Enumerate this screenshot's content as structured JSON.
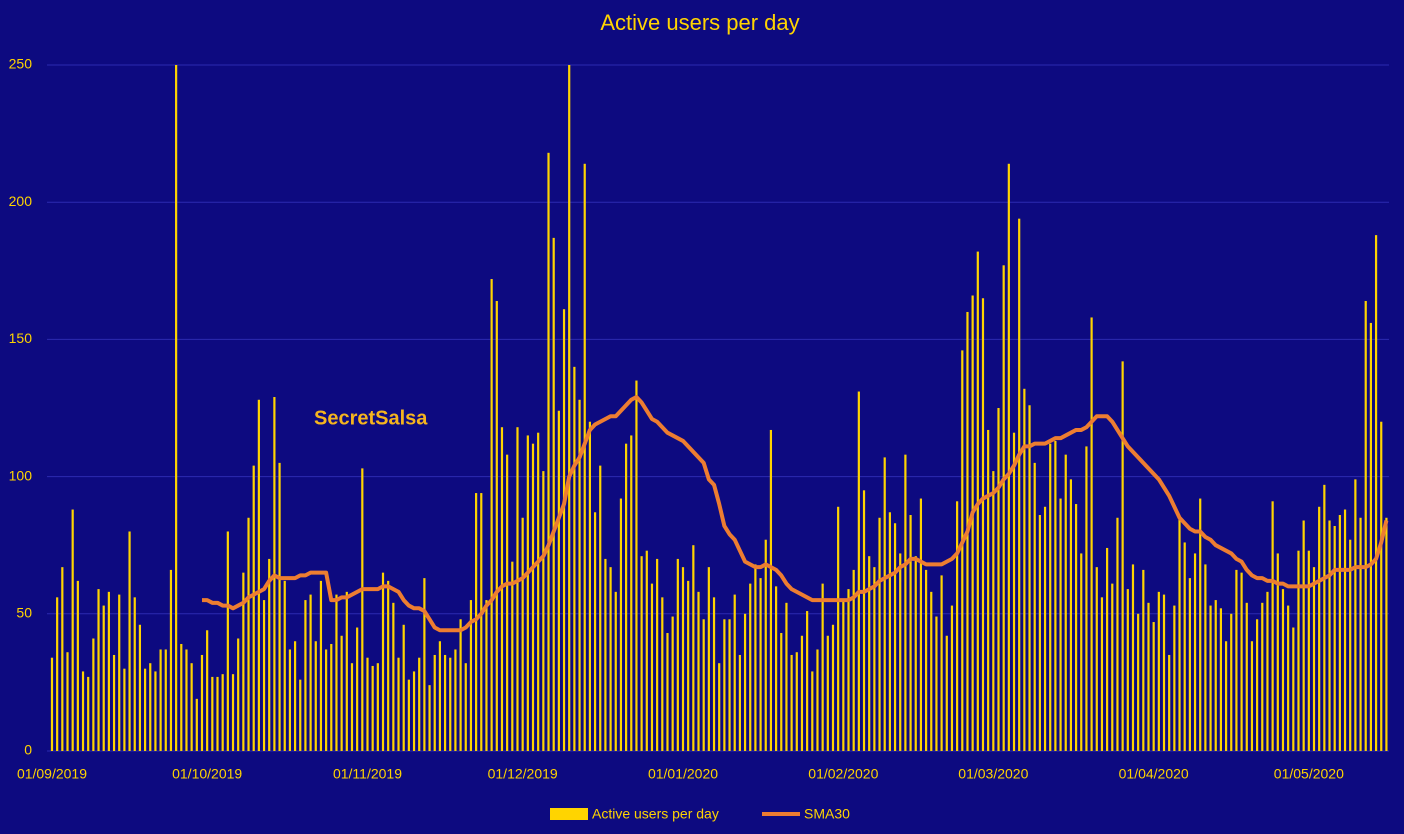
{
  "chart_data": {
    "type": "bar",
    "title": "Active users per day",
    "annotation": "SecretSalsa",
    "categories": [
      "01/09/2019",
      null,
      null,
      null,
      null,
      null,
      null,
      null,
      null,
      null,
      null,
      null,
      null,
      null,
      null,
      null,
      null,
      null,
      null,
      null,
      null,
      null,
      null,
      null,
      null,
      null,
      null,
      null,
      null,
      null,
      "01/10/2019",
      null,
      null,
      null,
      null,
      null,
      null,
      null,
      null,
      null,
      null,
      null,
      null,
      null,
      null,
      null,
      null,
      null,
      null,
      null,
      null,
      null,
      null,
      null,
      null,
      null,
      null,
      null,
      null,
      null,
      null,
      "01/11/2019",
      null,
      null,
      null,
      null,
      null,
      null,
      null,
      null,
      null,
      null,
      null,
      null,
      null,
      null,
      null,
      null,
      null,
      null,
      null,
      null,
      null,
      null,
      null,
      null,
      null,
      null,
      null,
      null,
      null,
      "01/12/2019",
      null,
      null,
      null,
      null,
      null,
      null,
      null,
      null,
      null,
      null,
      null,
      null,
      null,
      null,
      null,
      null,
      null,
      null,
      null,
      null,
      null,
      null,
      null,
      null,
      null,
      null,
      null,
      null,
      null,
      null,
      "01/01/2020",
      null,
      null,
      null,
      null,
      null,
      null,
      null,
      null,
      null,
      null,
      null,
      null,
      null,
      null,
      null,
      null,
      null,
      null,
      null,
      null,
      null,
      null,
      null,
      null,
      null,
      null,
      null,
      null,
      null,
      null,
      "01/02/2020",
      null,
      null,
      null,
      null,
      null,
      null,
      null,
      null,
      null,
      null,
      null,
      null,
      null,
      null,
      null,
      null,
      null,
      null,
      null,
      null,
      null,
      null,
      null,
      null,
      null,
      null,
      null,
      null,
      "01/03/2020",
      null,
      null,
      null,
      null,
      null,
      null,
      null,
      null,
      null,
      null,
      null,
      null,
      null,
      null,
      null,
      null,
      null,
      null,
      null,
      null,
      null,
      null,
      null,
      null,
      null,
      null,
      null,
      null,
      null,
      null,
      "01/04/2020",
      null,
      null,
      null,
      null,
      null,
      null,
      null,
      null,
      null,
      null,
      null,
      null,
      null,
      null,
      null,
      null,
      null,
      null,
      null,
      null,
      null,
      null,
      null,
      null,
      null,
      null,
      null,
      null,
      null,
      "01/05/2020",
      null,
      null,
      null,
      null,
      null,
      null,
      null,
      null,
      null,
      null,
      null,
      null,
      null,
      null,
      null
    ],
    "series": [
      {
        "name": "Active users per day",
        "type": "bar",
        "color": "#ffd400",
        "values": [
          34,
          56,
          67,
          36,
          88,
          62,
          29,
          27,
          41,
          59,
          53,
          58,
          35,
          57,
          30,
          80,
          56,
          46,
          30,
          32,
          29,
          37,
          37,
          66,
          250,
          39,
          37,
          32,
          19,
          35,
          44,
          27,
          27,
          28,
          80,
          28,
          41,
          65,
          85,
          104,
          128,
          55,
          70,
          129,
          105,
          62,
          37,
          40,
          26,
          55,
          57,
          40,
          62,
          37,
          39,
          57,
          42,
          58,
          32,
          45,
          103,
          34,
          31,
          32,
          65,
          62,
          54,
          34,
          46,
          26,
          29,
          34,
          63,
          24,
          35,
          40,
          35,
          34,
          37,
          48,
          32,
          55,
          94,
          94,
          55,
          172,
          164,
          118,
          108,
          69,
          118,
          85,
          115,
          112,
          116,
          102,
          218,
          187,
          124,
          161,
          250,
          140,
          128,
          214,
          120,
          87,
          104,
          70,
          67,
          58,
          92,
          112,
          115,
          135,
          71,
          73,
          61,
          70,
          56,
          43,
          49,
          70,
          67,
          62,
          75,
          58,
          48,
          67,
          56,
          32,
          48,
          48,
          57,
          35,
          50,
          61,
          68,
          63,
          77,
          117,
          60,
          43,
          54,
          35,
          36,
          42,
          51,
          29,
          37,
          61,
          42,
          46,
          89,
          55,
          59,
          66,
          131,
          95,
          71,
          67,
          85,
          107,
          87,
          83,
          72,
          108,
          86,
          71,
          92,
          66,
          58,
          49,
          64,
          42,
          53,
          91,
          146,
          160,
          166,
          182,
          165,
          117,
          102,
          125,
          177,
          214,
          116,
          194,
          132,
          126,
          105,
          86,
          89,
          112,
          113,
          92,
          108,
          99,
          90,
          72,
          111,
          158,
          67,
          56,
          74,
          61,
          85,
          142,
          59,
          68,
          50,
          66,
          54,
          47,
          58,
          57,
          35,
          53,
          85,
          76,
          63,
          72,
          92,
          68,
          53,
          55,
          52,
          40,
          50,
          66,
          65,
          54,
          40,
          48,
          54,
          58,
          91,
          72,
          59,
          53,
          45,
          73,
          84,
          73,
          67,
          89,
          97,
          84,
          82,
          86,
          88,
          77,
          99,
          85,
          164,
          156,
          188,
          120,
          85
        ]
      },
      {
        "name": "SMA30",
        "type": "line",
        "color": "#ed7d31",
        "values": [
          null,
          null,
          null,
          null,
          null,
          null,
          null,
          null,
          null,
          null,
          null,
          null,
          null,
          null,
          null,
          null,
          null,
          null,
          null,
          null,
          null,
          null,
          null,
          null,
          null,
          null,
          null,
          null,
          null,
          55,
          55,
          54,
          54,
          53,
          53,
          52,
          53,
          54,
          56,
          57,
          58,
          59,
          62,
          64,
          63,
          63,
          63,
          63,
          64,
          64,
          65,
          65,
          65,
          65,
          55,
          55,
          56,
          56,
          57,
          58,
          59,
          59,
          59,
          59,
          60,
          60,
          59,
          58,
          55,
          53,
          52,
          52,
          51,
          48,
          45,
          44,
          44,
          44,
          44,
          44,
          45,
          47,
          48,
          50,
          53,
          55,
          58,
          60,
          61,
          61,
          62,
          63,
          65,
          67,
          69,
          71,
          75,
          80,
          85,
          90,
          100,
          104,
          107,
          112,
          117,
          119,
          120,
          121,
          122,
          122,
          124,
          126,
          128,
          129,
          127,
          124,
          121,
          120,
          118,
          116,
          115,
          114,
          113,
          111,
          109,
          107,
          105,
          99,
          97,
          90,
          82,
          79,
          77,
          73,
          69,
          68,
          67,
          67,
          68,
          67,
          66,
          64,
          61,
          59,
          58,
          57,
          56,
          55,
          55,
          55,
          55,
          55,
          55,
          55,
          55,
          56,
          58,
          58,
          59,
          60,
          62,
          63,
          64,
          65,
          67,
          68,
          70,
          70,
          69,
          68,
          68,
          68,
          68,
          69,
          70,
          72,
          76,
          80,
          87,
          90,
          92,
          93,
          94,
          96,
          99,
          101,
          104,
          108,
          111,
          111,
          112,
          112,
          112,
          113,
          114,
          114,
          115,
          116,
          117,
          117,
          118,
          120,
          122,
          122,
          122,
          120,
          117,
          114,
          111,
          109,
          107,
          105,
          103,
          101,
          99,
          96,
          93,
          89,
          85,
          83,
          81,
          80,
          80,
          78,
          77,
          75,
          74,
          73,
          72,
          70,
          69,
          66,
          64,
          63,
          63,
          62,
          62,
          61,
          61,
          60,
          60,
          60,
          60,
          60,
          61,
          62,
          63,
          64,
          66,
          66,
          66,
          66,
          67,
          67,
          67,
          68,
          70,
          76,
          84
        ]
      }
    ],
    "ylim": [
      0,
      250
    ],
    "yticks": [
      0,
      50,
      100,
      150,
      200,
      250
    ],
    "grid": true,
    "legend": "bottom"
  }
}
